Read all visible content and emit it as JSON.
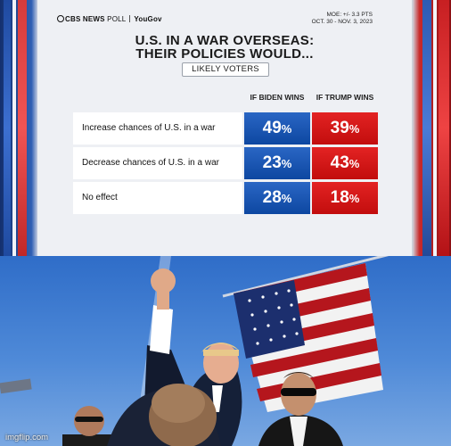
{
  "poll": {
    "brand_network": "CBS NEWS",
    "brand_poll": "POLL",
    "brand_partner": "YouGov",
    "moe_line": "MOE: +/- 3.3 PTS",
    "date_line": "OCT. 30 - NOV. 3, 2023",
    "title_line1": "U.S. IN A WAR OVERSEAS:",
    "title_line2": "THEIR POLICIES WOULD...",
    "subtitle": "LIKELY VOTERS",
    "col_biden": "IF BIDEN WINS",
    "col_trump": "IF TRUMP WINS",
    "percent_sign": "%",
    "rows": [
      {
        "label": "Increase chances of U.S. in a war",
        "biden": "49",
        "trump": "39"
      },
      {
        "label": "Decrease chances of U.S. in a war",
        "biden": "23",
        "trump": "43"
      },
      {
        "label": "No effect",
        "biden": "28",
        "trump": "18"
      }
    ],
    "colors": {
      "biden": "#0d47a1",
      "trump": "#c20d0d",
      "card": "#eef0f4"
    }
  },
  "photo": {
    "watermark": "imgflip.com",
    "sky_color": "#3f7bd0"
  }
}
